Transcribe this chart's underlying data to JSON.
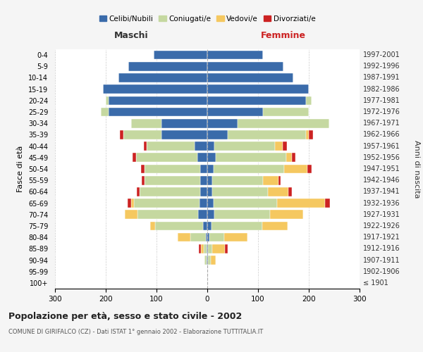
{
  "age_groups": [
    "100+",
    "95-99",
    "90-94",
    "85-89",
    "80-84",
    "75-79",
    "70-74",
    "65-69",
    "60-64",
    "55-59",
    "50-54",
    "45-49",
    "40-44",
    "35-39",
    "30-34",
    "25-29",
    "20-24",
    "15-19",
    "10-14",
    "5-9",
    "0-4"
  ],
  "birth_years": [
    "≤ 1901",
    "1902-1906",
    "1907-1911",
    "1912-1916",
    "1917-1921",
    "1922-1926",
    "1927-1931",
    "1932-1936",
    "1937-1941",
    "1942-1946",
    "1947-1951",
    "1952-1956",
    "1957-1961",
    "1962-1966",
    "1967-1971",
    "1972-1976",
    "1977-1981",
    "1982-1986",
    "1987-1991",
    "1992-1996",
    "1997-2001"
  ],
  "maschi": {
    "celibi": [
      0,
      0,
      2,
      2,
      3,
      8,
      18,
      15,
      14,
      14,
      14,
      20,
      25,
      90,
      90,
      195,
      195,
      205,
      175,
      155,
      105
    ],
    "coniugati": [
      0,
      0,
      3,
      5,
      30,
      95,
      120,
      130,
      120,
      110,
      110,
      120,
      95,
      75,
      60,
      15,
      5,
      0,
      0,
      0,
      0
    ],
    "vedovi": [
      0,
      0,
      0,
      5,
      25,
      10,
      25,
      5,
      0,
      0,
      0,
      0,
      0,
      0,
      0,
      0,
      0,
      0,
      0,
      0,
      0
    ],
    "divorziati": [
      0,
      0,
      0,
      5,
      0,
      0,
      0,
      7,
      5,
      5,
      7,
      7,
      5,
      7,
      0,
      0,
      0,
      0,
      0,
      0,
      0
    ]
  },
  "femmine": {
    "nubili": [
      0,
      0,
      2,
      2,
      4,
      8,
      14,
      12,
      10,
      10,
      12,
      16,
      14,
      40,
      60,
      110,
      195,
      200,
      170,
      150,
      110
    ],
    "coniugate": [
      0,
      0,
      5,
      8,
      30,
      100,
      110,
      125,
      110,
      100,
      140,
      140,
      120,
      155,
      180,
      90,
      10,
      0,
      0,
      0,
      0
    ],
    "vedove": [
      0,
      0,
      10,
      25,
      45,
      50,
      65,
      95,
      40,
      30,
      45,
      10,
      15,
      5,
      0,
      0,
      0,
      0,
      0,
      0,
      0
    ],
    "divorziate": [
      0,
      0,
      0,
      5,
      0,
      0,
      0,
      10,
      7,
      5,
      8,
      8,
      8,
      8,
      0,
      0,
      0,
      0,
      0,
      0,
      0
    ]
  },
  "colors": {
    "celibi": "#3a6baa",
    "coniugati": "#c5d8a0",
    "vedovi": "#f5c860",
    "divorziati": "#cc2222"
  },
  "legend_labels": [
    "Celibi/Nubili",
    "Coniugati/e",
    "Vedovi/e",
    "Divorziati/e"
  ],
  "title": "Popolazione per età, sesso e stato civile - 2002",
  "subtitle": "COMUNE DI GIRIFALCO (CZ) - Dati ISTAT 1° gennaio 2002 - Elaborazione TUTTITALIA.IT",
  "ylabel_left": "Fasce di età",
  "ylabel_right": "Anni di nascita",
  "xlabel_maschi": "Maschi",
  "xlabel_femmine": "Femmine",
  "xlim": 300,
  "bg_color": "#f5f5f5",
  "plot_bg": "#ffffff",
  "grid_color": "#cccccc"
}
